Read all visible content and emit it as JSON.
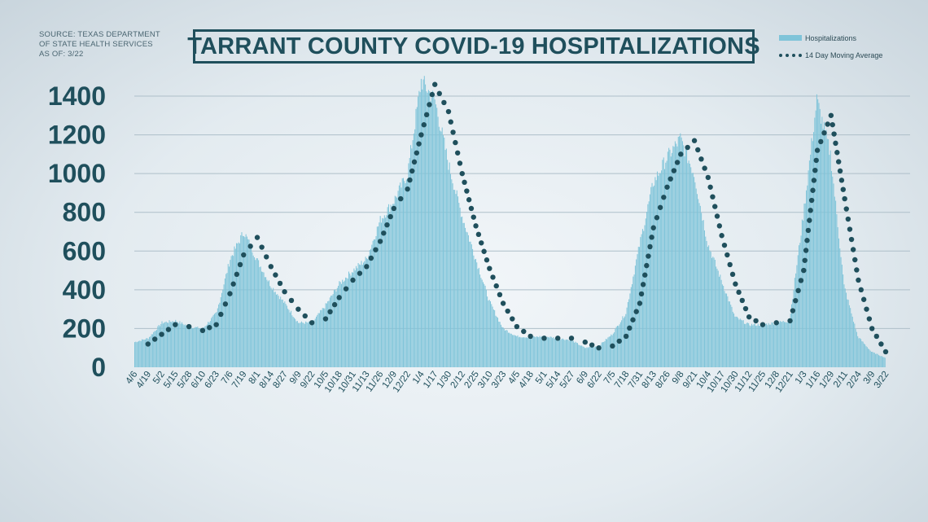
{
  "source_lines": [
    "SOURCE: TEXAS DEPARTMENT",
    "OF STATE HEALTH SERVICES",
    "AS OF: 3/22"
  ],
  "colors": {
    "bar": "#7fc4d9",
    "avg": "#1f4f5c",
    "axis_text": "#1f4f5c",
    "grid": "#aebfc9"
  },
  "chart_data": {
    "type": "bar",
    "title": "TARRANT COUNTY COVID-19 HOSPITALIZATIONS",
    "series": [
      {
        "name": "Hospitalizations",
        "type": "bar"
      },
      {
        "name": "14 Day Moving Average",
        "type": "line",
        "style": "dotted"
      }
    ],
    "ylim": [
      0,
      1400
    ],
    "yticks": [
      0,
      200,
      400,
      600,
      800,
      1000,
      1200,
      1400
    ],
    "xticks": [
      "4/6",
      "4/19",
      "5/2",
      "5/15",
      "5/28",
      "6/10",
      "6/23",
      "7/6",
      "7/19",
      "8/1",
      "8/14",
      "8/27",
      "9/9",
      "9/22",
      "10/5",
      "10/18",
      "10/31",
      "11/13",
      "11/26",
      "12/9",
      "12/22",
      "1/4",
      "1/17",
      "1/30",
      "2/12",
      "2/25",
      "3/10",
      "3/23",
      "4/5",
      "4/18",
      "5/1",
      "5/14",
      "5/27",
      "6/9",
      "6/22",
      "7/5",
      "7/18",
      "7/31",
      "8/13",
      "8/26",
      "9/8",
      "9/21",
      "10/4",
      "10/17",
      "10/30",
      "11/12",
      "11/25",
      "12/8",
      "12/21",
      "1/3",
      "1/16",
      "1/29",
      "2/11",
      "2/24",
      "3/9",
      "3/22"
    ],
    "daily_hospitalizations_by_tick": [
      130,
      150,
      230,
      240,
      210,
      200,
      280,
      560,
      700,
      550,
      420,
      330,
      230,
      230,
      320,
      430,
      500,
      560,
      760,
      860,
      1000,
      1480,
      1380,
      1050,
      780,
      560,
      340,
      200,
      160,
      155,
      160,
      150,
      140,
      100,
      110,
      170,
      280,
      630,
      950,
      1080,
      1180,
      1000,
      640,
      450,
      260,
      220,
      220,
      230,
      240,
      780,
      1380,
      1100,
      420,
      160,
      80,
      50
    ],
    "moving_average_by_tick": [
      null,
      120,
      170,
      220,
      210,
      190,
      220,
      380,
      580,
      670,
      520,
      390,
      300,
      230,
      250,
      360,
      450,
      520,
      650,
      820,
      920,
      1200,
      1460,
      1320,
      1000,
      730,
      510,
      330,
      210,
      160,
      150,
      150,
      150,
      130,
      100,
      110,
      160,
      330,
      720,
      930,
      1100,
      1170,
      980,
      680,
      430,
      260,
      220,
      230,
      240,
      500,
      1120,
      1300,
      870,
      450,
      200,
      80
    ]
  }
}
